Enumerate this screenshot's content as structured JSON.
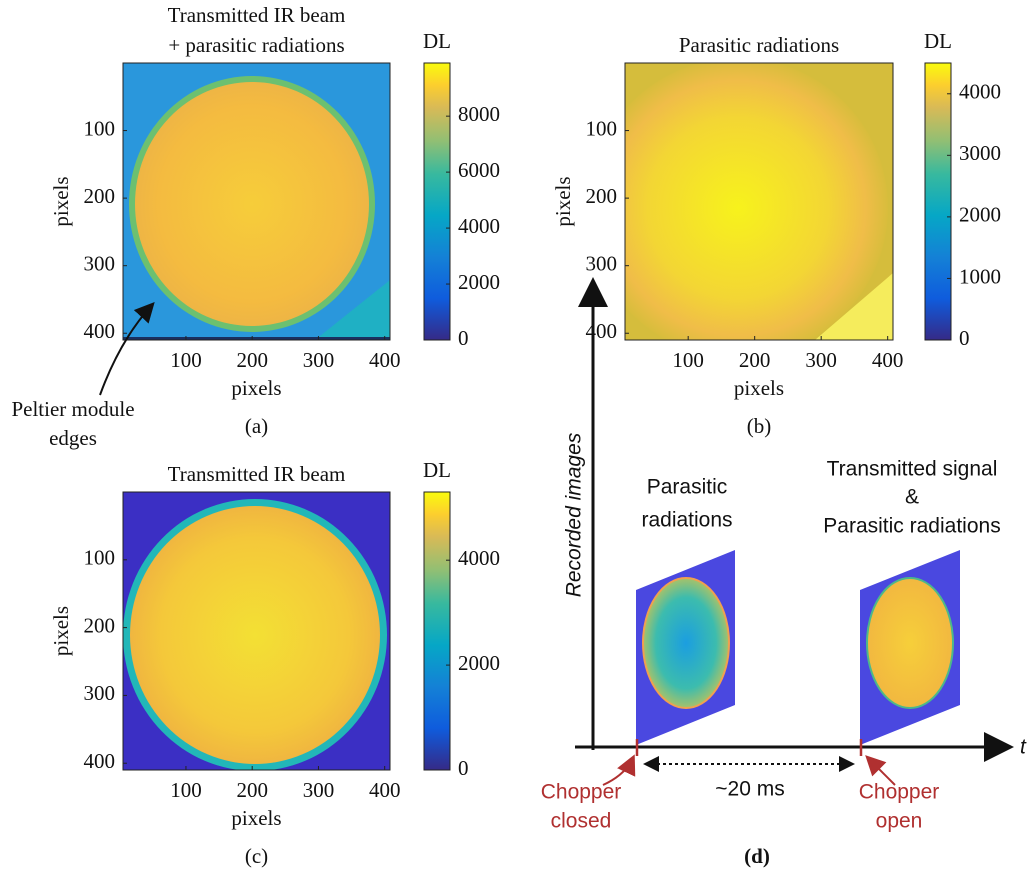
{
  "chart_data": [
    {
      "type": "image",
      "title": [
        "Transmitted IR beam",
        "+ parasitic radiations"
      ],
      "xlabel": "pixels",
      "ylabel": "pixels",
      "caption": "(a)",
      "xlim": [
        5,
        408
      ],
      "ylim": [
        0,
        410
      ],
      "xticks": [
        100,
        200,
        300,
        400
      ],
      "yticks": [
        100,
        200,
        300,
        400
      ],
      "colorbar": {
        "label": "DL",
        "lim": [
          0,
          9900
        ],
        "ticks": [
          0,
          2000,
          4000,
          6000,
          8000
        ]
      },
      "annotation": [
        "Peltier module",
        "edges"
      ]
    },
    {
      "type": "image",
      "title": [
        "Parasitic radiations"
      ],
      "xlabel": "pixels",
      "ylabel": "pixels",
      "caption": "(b)",
      "xlim": [
        5,
        408
      ],
      "ylim": [
        0,
        410
      ],
      "xticks": [
        100,
        200,
        300,
        400
      ],
      "yticks": [
        100,
        200,
        300,
        400
      ],
      "colorbar": {
        "label": "DL",
        "lim": [
          0,
          4500
        ],
        "ticks": [
          0,
          1000,
          2000,
          3000,
          4000
        ]
      }
    },
    {
      "type": "image",
      "title": [
        "Transmitted IR beam"
      ],
      "xlabel": "pixels",
      "ylabel": "pixels",
      "caption": "(c)",
      "xlim": [
        5,
        408
      ],
      "ylim": [
        0,
        410
      ],
      "xticks": [
        100,
        200,
        300,
        400
      ],
      "yticks": [
        100,
        200,
        300,
        400
      ],
      "colorbar": {
        "label": "DL",
        "lim": [
          0,
          5300
        ],
        "ticks": [
          0,
          2000,
          4000
        ]
      }
    }
  ],
  "diagram": {
    "y_axis_label": "Recorded images",
    "x_axis_label": "t",
    "frames": [
      {
        "label": [
          "Parasitic",
          "radiations"
        ]
      },
      {
        "label": [
          "Transmitted signal",
          "&",
          "Parasitic radiations"
        ]
      }
    ],
    "events": [
      {
        "label": [
          "Chopper",
          "closed"
        ]
      },
      {
        "label": [
          "Chopper",
          "open"
        ]
      }
    ],
    "interval": "~20 ms",
    "caption": "(d)"
  }
}
